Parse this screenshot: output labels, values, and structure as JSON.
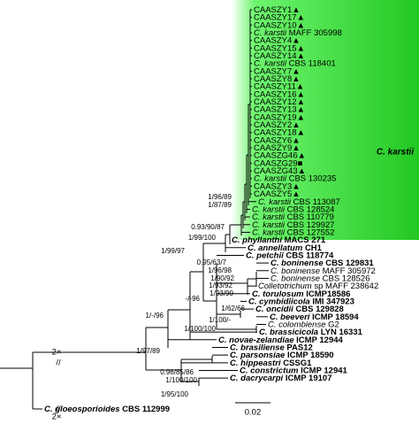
{
  "clade_label": "C. karstii",
  "scale_bar": "0.02",
  "break_marks": [
    "2×",
    "2×"
  ],
  "leaves": [
    {
      "name": "CAASZY1",
      "marker": "▲"
    },
    {
      "name": "CAASZY17",
      "marker": "▲"
    },
    {
      "name": "CAASZY10",
      "marker": "▲"
    },
    {
      "species": "C. karstii",
      "strain": "MAFF 305998"
    },
    {
      "name": "CAASZY4",
      "marker": "▲"
    },
    {
      "name": "CAASZY15",
      "marker": "▲"
    },
    {
      "name": "CAASZY14",
      "marker": "▲"
    },
    {
      "species": "C. karstii",
      "strain": "CBS 118401"
    },
    {
      "name": "CAASZY7",
      "marker": "▲"
    },
    {
      "name": "CAASZY8",
      "marker": "▲"
    },
    {
      "name": "CAASZY11",
      "marker": "▲"
    },
    {
      "name": "CAASZY16",
      "marker": "▲"
    },
    {
      "name": "CAASZY12",
      "marker": "▲"
    },
    {
      "name": "CAASZY13",
      "marker": "▲"
    },
    {
      "name": "CAASZY19",
      "marker": "▲"
    },
    {
      "name": "CAASZY2",
      "marker": "▲"
    },
    {
      "name": "CAASZY18",
      "marker": "▲"
    },
    {
      "name": "CAASZY6",
      "marker": "▲"
    },
    {
      "name": "CAASZY9",
      "marker": "▲"
    },
    {
      "name": "CAASZG46",
      "marker": "▲"
    },
    {
      "name": "CAASZG29",
      "marker": "■"
    },
    {
      "name": "CAASZG43",
      "marker": "▲"
    },
    {
      "species": "C. karstii",
      "strain": "CBS 130235"
    },
    {
      "name": "CAASZY3",
      "marker": "▲"
    },
    {
      "name": "CAASZY5",
      "marker": "▲"
    },
    {
      "species": "C. karstii",
      "strain": "CBS 113087"
    },
    {
      "species": "C. karstii",
      "strain": "CBS 128524"
    },
    {
      "species": "C. karstii",
      "strain": "CBS 110779"
    },
    {
      "species": "C. karstii",
      "strain": "CBS 129927"
    },
    {
      "species": "C. karstii",
      "strain": "CBS 127552"
    },
    {
      "species": "C. phyllanthi",
      "strain": "MACS 271",
      "bold": true
    },
    {
      "species": "C. annellatum",
      "strain": "CH1",
      "bold": true
    },
    {
      "species": "C. petchii",
      "strain": "CBS 118774",
      "bold": true
    },
    {
      "species": "C. boninense",
      "strain": "CBS 129831",
      "bold": true
    },
    {
      "species": "C. boninense",
      "strain": "MAFF 305972"
    },
    {
      "species": "C. boninense",
      "strain": "CBS 128526"
    },
    {
      "species": "Colletotrichum",
      "strain": "sp MAFF 238642"
    },
    {
      "species": "C. torulosum",
      "strain": "ICMP18586",
      "bold": true
    },
    {
      "species": "C. cymbidiicola",
      "strain": "IMI 347923",
      "bold": true
    },
    {
      "species": "C. oncidii",
      "strain": "CBS 129828",
      "bold": true
    },
    {
      "species": "C. beeveri",
      "strain": "ICMP 18594",
      "bold": true
    },
    {
      "species": "C. colombiense",
      "strain": "G2"
    },
    {
      "species": "C. brassicicola",
      "strain": "LYN 16331",
      "bold": true
    },
    {
      "species": "C. novae-zelandiae",
      "strain": "ICMP 12944",
      "bold": true
    },
    {
      "species": "C. brasiliense",
      "strain": "PAS12",
      "bold": true
    },
    {
      "species": "C. parsonsiae",
      "strain": "ICMP 18590",
      "bold": true
    },
    {
      "species": "C. hippeastri",
      "strain": "CSSG1",
      "bold": true
    },
    {
      "species": "C. constrictum",
      "strain": "ICMP 12941",
      "bold": true
    },
    {
      "species": "C. dacrycarpi",
      "strain": "ICMP 19107",
      "bold": true
    },
    {
      "species": "C. gloeosporioides",
      "strain": "CBS 112999",
      "bold": true
    }
  ],
  "support_values": [
    "1/96/89",
    "1/87/89",
    "0.93/90/87",
    "1/99/100",
    "1/99/97",
    "0.95/63/7",
    "1/96/98",
    "1/90/92",
    "1/93/92",
    "1/93/90",
    "-/-96",
    "1/-/96",
    "1/62/66",
    "1/100/-",
    "1/100/100",
    "1/97/89",
    "0.96/85/86",
    "1/100/100",
    "1/95/100"
  ]
}
